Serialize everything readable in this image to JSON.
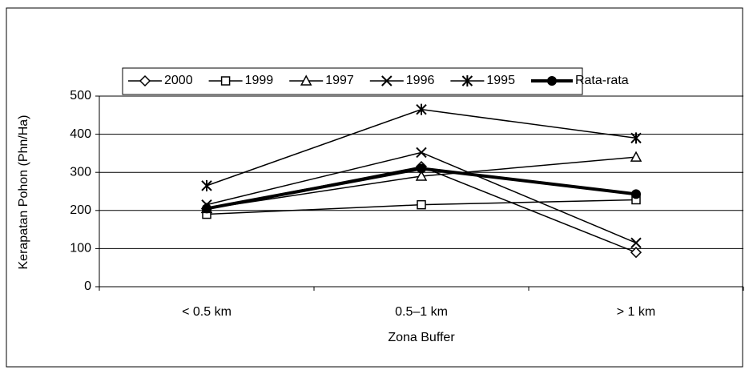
{
  "chart_data": {
    "type": "line",
    "categories": [
      "< 0.5 km",
      "0.5–1 km",
      "> 1 km"
    ],
    "x_label": "Zona Buffer",
    "y_label": "Kerapatan Pohon (Phn/Ha)",
    "ylim": [
      0,
      500
    ],
    "yticks": [
      0,
      100,
      200,
      300,
      400,
      500
    ],
    "grid": true,
    "series": [
      {
        "name": "2000",
        "color": "#000000",
        "marker": "diamond",
        "values": [
          205,
          315,
          90
        ]
      },
      {
        "name": "1999",
        "color": "#000000",
        "marker": "square",
        "values": [
          190,
          215,
          228
        ]
      },
      {
        "name": "1997",
        "color": "#000000",
        "marker": "triangle",
        "values": [
          205,
          290,
          340
        ]
      },
      {
        "name": "1996",
        "color": "#000000",
        "marker": "x",
        "values": [
          215,
          352,
          115
        ]
      },
      {
        "name": "1995",
        "color": "#000000",
        "marker": "star",
        "values": [
          265,
          465,
          390
        ]
      },
      {
        "name": "Rata-rata",
        "color": "#000000",
        "marker": "circle",
        "line_width": 4,
        "values": [
          205,
          310,
          243
        ]
      }
    ]
  }
}
